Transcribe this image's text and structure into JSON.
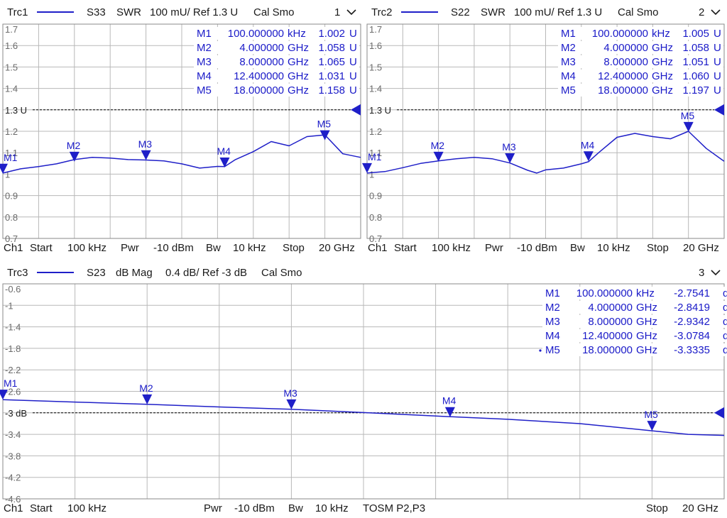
{
  "colors": {
    "trace": "#1f1fc8",
    "text": "#1a1a1a",
    "marker_text": "#1a1ac8",
    "grid": "#b8b8b8",
    "border": "#8a8a8a",
    "ref": "#000000"
  },
  "panels": [
    {
      "trc": "Trc1",
      "param": "S33",
      "format": "SWR",
      "scale": "100 mU/ Ref 1.3 U",
      "cal": "Cal Smo",
      "num": "1",
      "ticks": [
        "1.7",
        "1.6",
        "1.5",
        "1.4",
        "1.3 U",
        "1.2",
        "1.1",
        "1",
        "0.9",
        "0.8",
        "0.7"
      ],
      "ref_label": "1.3 U",
      "footer": [
        {
          "text": "Ch1"
        },
        {
          "text": "Start"
        },
        {
          "text": "100 kHz"
        },
        {
          "text": "Pwr"
        },
        {
          "text": "-10 dBm"
        },
        {
          "text": "Bw"
        },
        {
          "text": "10 kHz"
        },
        {
          "text": "Stop"
        },
        {
          "text": "20 GHz"
        }
      ],
      "marker_table": [
        {
          "name": "M1",
          "stim": "100.000000",
          "unit": "kHz",
          "val": "1.002",
          "vu": "U"
        },
        {
          "name": "M2",
          "stim": "4.000000",
          "unit": "GHz",
          "val": "1.058",
          "vu": "U"
        },
        {
          "name": "M3",
          "stim": "8.000000",
          "unit": "GHz",
          "val": "1.065",
          "vu": "U"
        },
        {
          "name": "M4",
          "stim": "12.400000",
          "unit": "GHz",
          "val": "1.031",
          "vu": "U"
        },
        {
          "name": "M5",
          "stim": "18.000000",
          "unit": "GHz",
          "val": "1.158",
          "vu": "U"
        }
      ]
    },
    {
      "trc": "Trc2",
      "param": "S22",
      "format": "SWR",
      "scale": "100 mU/ Ref 1.3 U",
      "cal": "Cal Smo",
      "num": "2",
      "ticks": [
        "1.7",
        "1.6",
        "1.5",
        "1.4",
        "1.3 U",
        "1.2",
        "1.1",
        "1",
        "0.9",
        "0.8",
        "0.7"
      ],
      "ref_label": "1.3 U",
      "footer": [
        {
          "text": "Ch1"
        },
        {
          "text": "Start"
        },
        {
          "text": "100 kHz"
        },
        {
          "text": "Pwr"
        },
        {
          "text": "-10 dBm"
        },
        {
          "text": "Bw"
        },
        {
          "text": "10 kHz"
        },
        {
          "text": "Stop"
        },
        {
          "text": "20 GHz"
        }
      ],
      "marker_table": [
        {
          "name": "M1",
          "stim": "100.000000",
          "unit": "kHz",
          "val": "1.005",
          "vu": "U"
        },
        {
          "name": "M2",
          "stim": "4.000000",
          "unit": "GHz",
          "val": "1.058",
          "vu": "U"
        },
        {
          "name": "M3",
          "stim": "8.000000",
          "unit": "GHz",
          "val": "1.051",
          "vu": "U"
        },
        {
          "name": "M4",
          "stim": "12.400000",
          "unit": "GHz",
          "val": "1.060",
          "vu": "U"
        },
        {
          "name": "M5",
          "stim": "18.000000",
          "unit": "GHz",
          "val": "1.197",
          "vu": "U"
        }
      ]
    },
    {
      "trc": "Trc3",
      "param": "S23",
      "format": "dB Mag",
      "scale": "0.4 dB/ Ref -3 dB",
      "cal": "Cal Smo",
      "num": "3",
      "ticks": [
        "-0.6",
        "-1",
        "-1.4",
        "-1.8",
        "-2.2",
        "-2.6",
        "-3 dB",
        "-3.4",
        "-3.8",
        "-4.2",
        "-4.6"
      ],
      "ref_label": "-3 dB",
      "footer": [
        {
          "text": "Ch1"
        },
        {
          "text": "Start"
        },
        {
          "text": "100 kHz"
        },
        {
          "text": "Pwr"
        },
        {
          "text": "-10 dBm"
        },
        {
          "text": "Bw"
        },
        {
          "text": "10 kHz"
        },
        {
          "text": "TOSM P2,P3"
        },
        {
          "text": "Stop"
        },
        {
          "text": "20 GHz"
        }
      ],
      "marker_table": [
        {
          "name": "M1",
          "stim": "100.000000",
          "unit": "kHz",
          "val": "-2.7541",
          "vu": "dB"
        },
        {
          "name": "M2",
          "stim": "4.000000",
          "unit": "GHz",
          "val": "-2.8419",
          "vu": "dB"
        },
        {
          "name": "M3",
          "stim": "8.000000",
          "unit": "GHz",
          "val": "-2.9342",
          "vu": "dB"
        },
        {
          "name": "M4",
          "stim": "12.400000",
          "unit": "GHz",
          "val": "-3.0784",
          "vu": "dB"
        },
        {
          "name": "M5",
          "stim": "18.000000",
          "unit": "GHz",
          "val": "-3.3335",
          "vu": "dB"
        }
      ]
    }
  ],
  "chart_data": [
    {
      "type": "line",
      "trace": "Trc1",
      "parameter": "S33",
      "format": "SWR",
      "xlim": [
        0.0001,
        20
      ],
      "ylim": [
        0.7,
        1.7
      ],
      "ref_value": 1.3,
      "grid": true,
      "x": [
        0.0001,
        0.5,
        1,
        2,
        3,
        4,
        5,
        6,
        7,
        8,
        9,
        10,
        11,
        12,
        12.4,
        13,
        14,
        15,
        16,
        17,
        18,
        19,
        20
      ],
      "y": [
        1.005,
        1.015,
        1.025,
        1.035,
        1.048,
        1.068,
        1.078,
        1.075,
        1.068,
        1.066,
        1.062,
        1.048,
        1.028,
        1.036,
        1.035,
        1.068,
        1.105,
        1.152,
        1.132,
        1.175,
        1.183,
        1.095,
        1.078
      ],
      "markers": [
        {
          "name": "M1",
          "x": 0.0001,
          "y": 1.002
        },
        {
          "name": "M2",
          "x": 4,
          "y": 1.058
        },
        {
          "name": "M3",
          "x": 8,
          "y": 1.065
        },
        {
          "name": "M4",
          "x": 12.4,
          "y": 1.031
        },
        {
          "name": "M5",
          "x": 18,
          "y": 1.158
        }
      ]
    },
    {
      "type": "line",
      "trace": "Trc2",
      "parameter": "S22",
      "format": "SWR",
      "xlim": [
        0.0001,
        20
      ],
      "ylim": [
        0.7,
        1.7
      ],
      "ref_value": 1.3,
      "grid": true,
      "x": [
        0.0001,
        1,
        2,
        3,
        4,
        5,
        6,
        7,
        8,
        9,
        9.5,
        10,
        11,
        12,
        12.4,
        13,
        14,
        15,
        16,
        17,
        18,
        19,
        20
      ],
      "y": [
        1.005,
        1.012,
        1.03,
        1.05,
        1.062,
        1.072,
        1.078,
        1.072,
        1.052,
        1.018,
        1.005,
        1.02,
        1.028,
        1.048,
        1.058,
        1.102,
        1.172,
        1.19,
        1.175,
        1.165,
        1.2,
        1.12,
        1.06
      ],
      "markers": [
        {
          "name": "M1",
          "x": 0.0001,
          "y": 1.005
        },
        {
          "name": "M2",
          "x": 4,
          "y": 1.058
        },
        {
          "name": "M3",
          "x": 8,
          "y": 1.051
        },
        {
          "name": "M4",
          "x": 12.4,
          "y": 1.06
        },
        {
          "name": "M5",
          "x": 18,
          "y": 1.197
        }
      ]
    },
    {
      "type": "line",
      "trace": "Trc3",
      "parameter": "S23",
      "format": "dB Mag",
      "xlim": [
        0.0001,
        20
      ],
      "ylim": [
        -4.6,
        -0.6
      ],
      "ref_value": -3,
      "grid": true,
      "x": [
        0.0001,
        2,
        4,
        6,
        8,
        10,
        12,
        14,
        16,
        18,
        19,
        20
      ],
      "y": [
        -2.754,
        -2.8,
        -2.842,
        -2.89,
        -2.934,
        -2.995,
        -3.06,
        -3.12,
        -3.2,
        -3.334,
        -3.4,
        -3.42
      ],
      "markers": [
        {
          "name": "M1",
          "x": 0.0001,
          "y": -2.7541
        },
        {
          "name": "M2",
          "x": 4,
          "y": -2.8419
        },
        {
          "name": "M3",
          "x": 8,
          "y": -2.9342
        },
        {
          "name": "M4",
          "x": 12.4,
          "y": -3.0784
        },
        {
          "name": "M5",
          "x": 18,
          "y": -3.3335
        }
      ]
    }
  ]
}
